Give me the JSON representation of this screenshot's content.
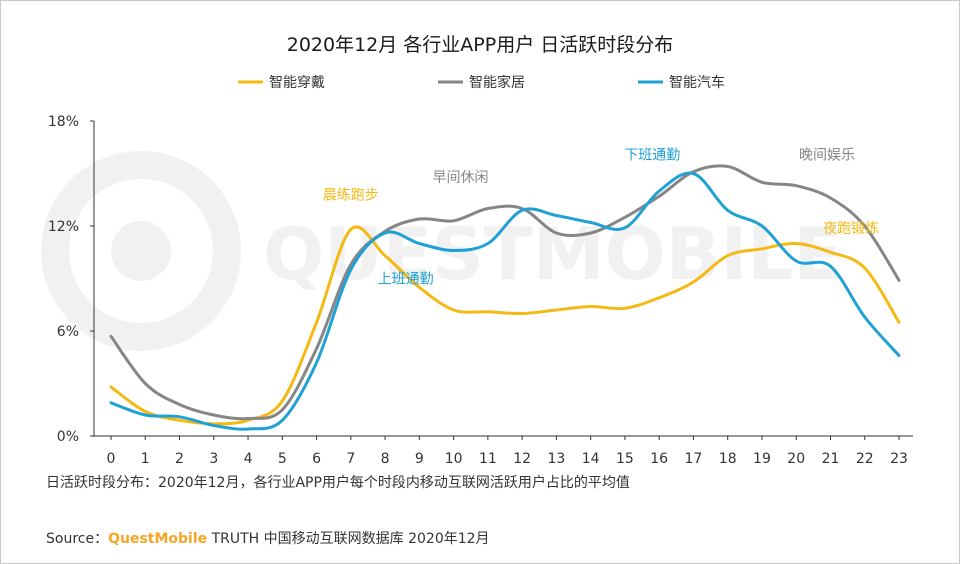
{
  "chart_data": {
    "type": "line",
    "title": "2020年12月 各行业APP用户 日活跃时段分布",
    "x": [
      0,
      1,
      2,
      3,
      4,
      5,
      6,
      7,
      8,
      9,
      10,
      11,
      12,
      13,
      14,
      15,
      16,
      17,
      18,
      19,
      20,
      21,
      22,
      23
    ],
    "ylim": [
      0,
      18
    ],
    "yticks": [
      "0%",
      "6%",
      "12%",
      "18%"
    ],
    "grid": false,
    "legend_position": "top",
    "series": [
      {
        "name": "智能穿戴",
        "color": "#f5b914",
        "values": [
          2.8,
          1.4,
          0.9,
          0.7,
          0.9,
          2.0,
          6.5,
          11.8,
          10.3,
          8.5,
          7.2,
          7.1,
          7.0,
          7.2,
          7.4,
          7.3,
          7.9,
          8.8,
          10.3,
          10.7,
          11.0,
          10.5,
          9.6,
          6.5
        ]
      },
      {
        "name": "智能家居",
        "color": "#868686",
        "values": [
          5.7,
          3.0,
          1.8,
          1.2,
          1.0,
          1.5,
          5.0,
          9.8,
          11.7,
          12.4,
          12.3,
          13.0,
          13.0,
          11.6,
          11.6,
          12.5,
          13.7,
          15.1,
          15.4,
          14.5,
          14.3,
          13.6,
          12.0,
          8.9
        ]
      },
      {
        "name": "智能汽车",
        "color": "#20a1d6",
        "values": [
          1.9,
          1.2,
          1.1,
          0.6,
          0.4,
          0.9,
          4.2,
          9.5,
          11.6,
          11.0,
          10.6,
          11.0,
          12.9,
          12.6,
          12.2,
          11.9,
          14.0,
          15.0,
          12.9,
          12.0,
          10.0,
          9.7,
          6.8,
          4.6
        ]
      }
    ],
    "annotations": [
      {
        "text": "晨练跑步",
        "x": 7,
        "y": 13.8,
        "color": "#f5b914"
      },
      {
        "text": "早间休闲",
        "x": 10.2,
        "y": 14.8,
        "color": "#868686"
      },
      {
        "text": "上班通勤",
        "x": 8.6,
        "y": 9.0,
        "color": "#20a1d6"
      },
      {
        "text": "下班通勤",
        "x": 15.8,
        "y": 16.1,
        "color": "#20a1d6"
      },
      {
        "text": "晚间娱乐",
        "x": 20.9,
        "y": 16.1,
        "color": "#868686"
      },
      {
        "text": "夜跑锻炼",
        "x": 21.6,
        "y": 11.9,
        "color": "#f5b914"
      }
    ],
    "watermark": "QUESTMOBILE"
  },
  "footer": {
    "note": "日活跃时段分布：2020年12月，各行业APP用户每个时段内移动互联网活跃用户占比的平均值",
    "source_prefix": "Source：",
    "source_brand": "QuestMobile",
    "source_rest": " TRUTH 中国移动互联网数据库 2020年12月"
  }
}
